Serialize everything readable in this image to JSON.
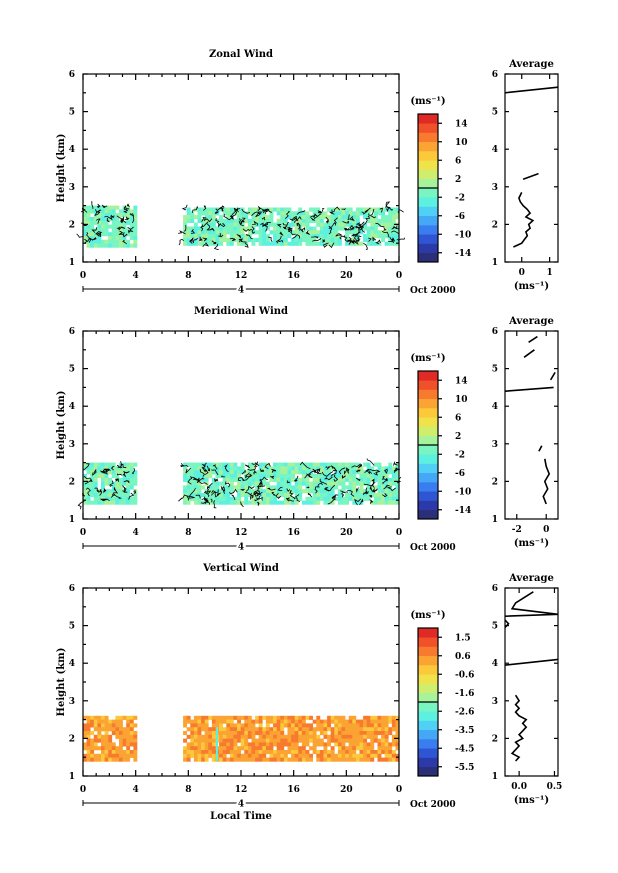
{
  "chart_data": [
    {
      "type": "heatmap",
      "title": "Zonal Wind",
      "ylabel": "Height (km)",
      "x_ticks": [
        "0",
        "4",
        "8",
        "12",
        "16",
        "20",
        "0"
      ],
      "y_ticks": [
        "1",
        "2",
        "3",
        "4",
        "5",
        "6"
      ],
      "ylim": [
        1,
        6
      ],
      "date_labels": {
        "day": "4",
        "month_year": "Oct 2000"
      },
      "colorbar": {
        "unit": "(ms⁻¹)",
        "ticks": [
          "14",
          "10",
          "6",
          "2",
          "-2",
          "-6",
          "-10",
          "-14"
        ],
        "range": [
          -16,
          16
        ]
      },
      "coverage": [
        {
          "x_start": 0,
          "x_end": 4,
          "h_bottom": 1.45,
          "h_top": 2.5
        },
        {
          "x_start": 7.6,
          "x_end": 24,
          "h_bottom": 1.45,
          "h_top": 2.45
        }
      ],
      "dominant_value_ms": -1,
      "average_profile": {
        "title": "Average",
        "xlabel": "(ms⁻¹)",
        "x_ticks": [
          "0",
          "1"
        ],
        "xlim": [
          -0.6,
          1.3
        ],
        "segments": [
          [
            [
              -0.3,
              1.4
            ],
            [
              0.0,
              1.5
            ],
            [
              0.1,
              1.6
            ],
            [
              0.2,
              1.7
            ],
            [
              0.15,
              1.8
            ],
            [
              0.3,
              1.9
            ],
            [
              0.25,
              2.0
            ],
            [
              0.4,
              2.1
            ],
            [
              0.15,
              2.2
            ],
            [
              0.3,
              2.3
            ],
            [
              0.2,
              2.4
            ],
            [
              0.05,
              2.5
            ],
            [
              -0.05,
              2.6
            ],
            [
              -0.1,
              2.7
            ],
            [
              0.0,
              2.85
            ]
          ],
          [
            [
              0.05,
              3.2
            ],
            [
              0.6,
              3.35
            ]
          ],
          [
            [
              -0.6,
              5.5
            ],
            [
              1.3,
              5.65
            ]
          ]
        ]
      }
    },
    {
      "type": "heatmap",
      "title": "Meridional Wind",
      "ylabel": "Height (km)",
      "x_ticks": [
        "0",
        "4",
        "8",
        "12",
        "16",
        "20",
        "0"
      ],
      "y_ticks": [
        "1",
        "2",
        "3",
        "4",
        "5",
        "6"
      ],
      "ylim": [
        1,
        6
      ],
      "date_labels": {
        "day": "4",
        "month_year": "Oct 2000"
      },
      "colorbar": {
        "unit": "(ms⁻¹)",
        "ticks": [
          "14",
          "10",
          "6",
          "2",
          "-2",
          "-6",
          "-10",
          "-14"
        ],
        "range": [
          -16,
          16
        ]
      },
      "coverage": [
        {
          "x_start": 0,
          "x_end": 4,
          "h_bottom": 1.45,
          "h_top": 2.5
        },
        {
          "x_start": 7.6,
          "x_end": 24,
          "h_bottom": 1.45,
          "h_top": 2.5
        }
      ],
      "dominant_value_ms": -1,
      "average_profile": {
        "title": "Average",
        "xlabel": "(ms⁻¹)",
        "x_ticks": [
          "-2",
          "0"
        ],
        "xlim": [
          -2.8,
          0.8
        ],
        "segments": [
          [
            [
              0.0,
              1.4
            ],
            [
              -0.2,
              1.6
            ],
            [
              0.1,
              1.8
            ],
            [
              -0.1,
              2.0
            ],
            [
              0.2,
              2.2
            ],
            [
              0.0,
              2.4
            ],
            [
              -0.1,
              2.6
            ]
          ],
          [
            [
              -0.5,
              2.8
            ],
            [
              -0.3,
              2.95
            ]
          ],
          [
            [
              -2.8,
              4.4
            ],
            [
              0.5,
              4.5
            ]
          ],
          [
            [
              0.3,
              4.7
            ],
            [
              0.6,
              4.9
            ]
          ],
          [
            [
              -1.5,
              5.3
            ],
            [
              -0.8,
              5.5
            ]
          ],
          [
            [
              -1.2,
              5.7
            ],
            [
              -0.6,
              5.85
            ]
          ]
        ]
      }
    },
    {
      "type": "heatmap",
      "title": "Vertical Wind",
      "ylabel": "Height (km)",
      "xlabel": "Local Time",
      "x_ticks": [
        "0",
        "4",
        "8",
        "12",
        "16",
        "20",
        "0"
      ],
      "y_ticks": [
        "1",
        "2",
        "3",
        "4",
        "5",
        "6"
      ],
      "ylim": [
        1,
        6
      ],
      "date_labels": {
        "day": "4",
        "month_year": "Oct 2000"
      },
      "colorbar": {
        "unit": "(ms⁻¹)",
        "ticks": [
          "1.5",
          "0.6",
          "-0.6",
          "-1.6",
          "-2.6",
          "-3.5",
          "-4.5",
          "-5.5"
        ],
        "range": [
          -6,
          2
        ]
      },
      "coverage": [
        {
          "x_start": 0,
          "x_end": 4,
          "h_bottom": 1.4,
          "h_top": 2.6
        },
        {
          "x_start": 7.6,
          "x_end": 24,
          "h_bottom": 1.4,
          "h_top": 2.6
        }
      ],
      "dominant_value_ms": 0.3,
      "average_profile": {
        "title": "Average",
        "xlabel": "(ms⁻¹)",
        "x_ticks": [
          "0.0",
          "0.5"
        ],
        "xlim": [
          -0.2,
          0.55
        ],
        "segments": [
          [
            [
              -0.05,
              1.4
            ],
            [
              0.0,
              1.5
            ],
            [
              -0.1,
              1.6
            ],
            [
              -0.05,
              1.7
            ],
            [
              0.0,
              1.8
            ],
            [
              -0.05,
              1.9
            ],
            [
              0.05,
              2.0
            ],
            [
              0.0,
              2.1
            ],
            [
              0.05,
              2.2
            ],
            [
              0.1,
              2.3
            ],
            [
              0.05,
              2.4
            ],
            [
              0.1,
              2.5
            ],
            [
              0.0,
              2.6
            ],
            [
              -0.05,
              2.7
            ],
            [
              0.0,
              2.8
            ],
            [
              -0.05,
              2.9
            ],
            [
              0.0,
              3.0
            ],
            [
              -0.05,
              3.15
            ]
          ],
          [
            [
              -0.2,
              3.95
            ],
            [
              0.55,
              4.1
            ]
          ],
          [
            [
              -0.2,
              4.95
            ],
            [
              -0.15,
              5.05
            ],
            [
              -0.2,
              5.15
            ]
          ],
          [
            [
              -0.2,
              5.25
            ],
            [
              0.55,
              5.3
            ],
            [
              -0.1,
              5.45
            ],
            [
              -0.05,
              5.6
            ],
            [
              0.2,
              5.9
            ]
          ]
        ]
      }
    }
  ]
}
